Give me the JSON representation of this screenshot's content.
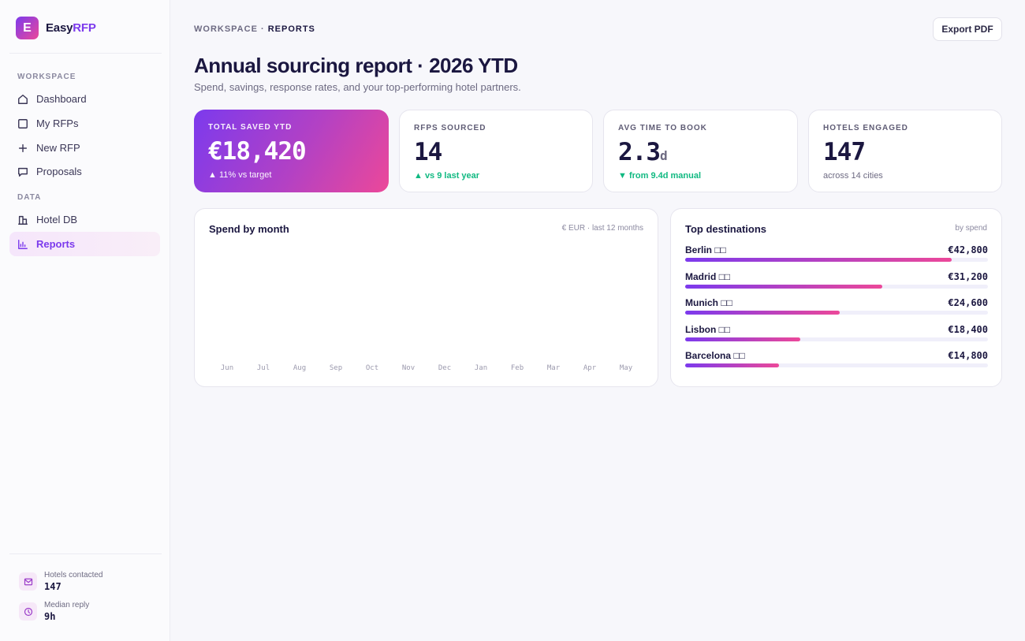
{
  "brand": {
    "logo_letter": "E",
    "name_part1": "Easy",
    "name_part2": "RFP"
  },
  "sidebar": {
    "section_workspace": "WORKSPACE",
    "section_data": "DATA",
    "items": [
      {
        "label": "Dashboard",
        "icon": "home-icon"
      },
      {
        "label": "My RFPs",
        "icon": "square-icon"
      },
      {
        "label": "New RFP",
        "icon": "plus-icon"
      },
      {
        "label": "Proposals",
        "icon": "chat-icon"
      },
      {
        "label": "Hotel DB",
        "icon": "building-icon"
      },
      {
        "label": "Reports",
        "icon": "bar-chart-icon",
        "active": true
      }
    ],
    "stats": [
      {
        "label": "Hotels contacted",
        "value": "147",
        "icon": "mail-icon"
      },
      {
        "label": "Median reply",
        "value": "9h",
        "icon": "clock-icon"
      }
    ]
  },
  "header": {
    "breadcrumb_parent": "WORKSPACE",
    "breadcrumb_sep": " · ",
    "breadcrumb_current": "REPORTS",
    "export_label": "Export PDF",
    "title": "Annual sourcing report · 2026 YTD",
    "subtitle": "Spend, savings, response rates, and your top-performing hotel partners."
  },
  "kpis": {
    "saved": {
      "label": "TOTAL SAVED YTD",
      "value": "€18,420",
      "sub": "▲ 11% vs target"
    },
    "rfps": {
      "label": "RFPS SOURCED",
      "value": "14",
      "sub": "▲ vs 9 last year"
    },
    "time": {
      "label": "AVG TIME TO BOOK",
      "value": "2.3",
      "unit": "d",
      "sub": "▼ from 9.4d manual"
    },
    "hotels": {
      "label": "HOTELS ENGAGED",
      "value": "147",
      "sub": "across 14 cities"
    }
  },
  "spend_panel": {
    "title": "Spend by month",
    "meta": "€ EUR · last 12 months",
    "months": [
      "Jun",
      "Jul",
      "Aug",
      "Sep",
      "Oct",
      "Nov",
      "Dec",
      "Jan",
      "Feb",
      "Mar",
      "Apr",
      "May"
    ]
  },
  "destinations_panel": {
    "title": "Top destinations",
    "meta": "by spend",
    "items": [
      {
        "name": "Berlin",
        "flag": "□□",
        "value": "€42,800",
        "share": 0.88
      },
      {
        "name": "Madrid",
        "flag": "□□",
        "value": "€31,200",
        "share": 0.65
      },
      {
        "name": "Munich",
        "flag": "□□",
        "value": "€24,600",
        "share": 0.51
      },
      {
        "name": "Lisbon",
        "flag": "□□",
        "value": "€18,400",
        "share": 0.38
      },
      {
        "name": "Barcelona",
        "flag": "□□",
        "value": "€14,800",
        "share": 0.31
      }
    ]
  },
  "colors": {
    "accent": "#7c3aed",
    "accent2": "#ec4899",
    "good": "#10b981"
  }
}
